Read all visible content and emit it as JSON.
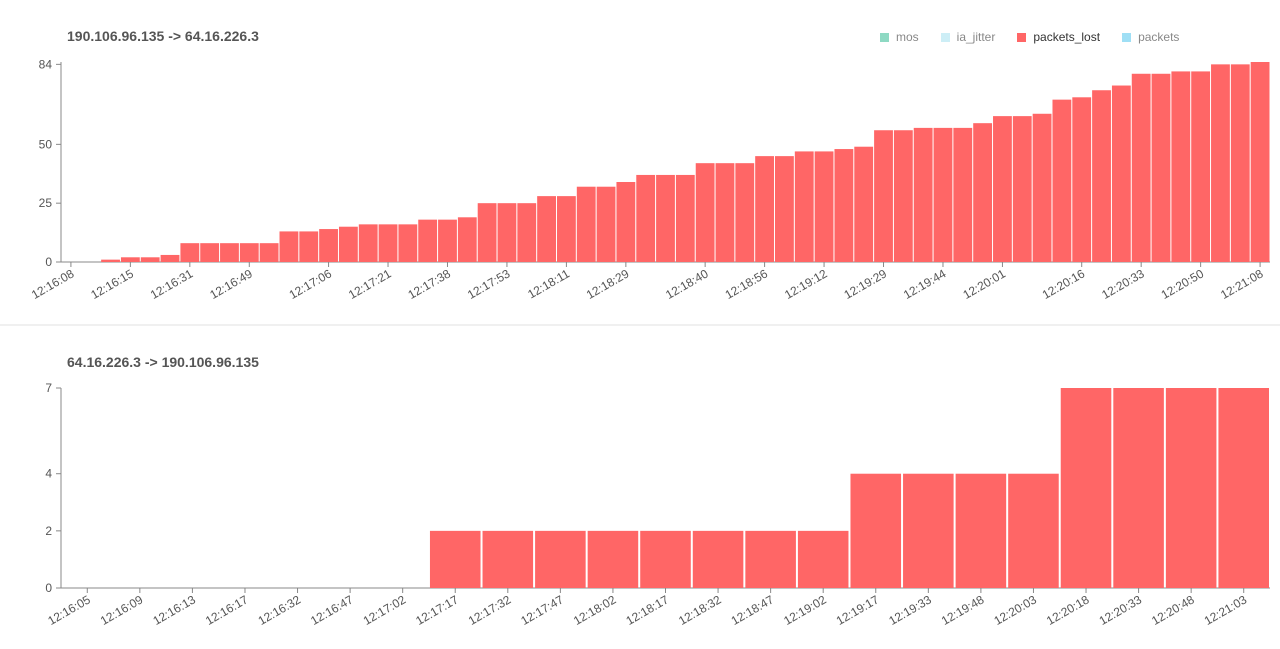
{
  "legend": {
    "items": [
      {
        "label": "mos",
        "color": "#8ed9c3"
      },
      {
        "label": "ia_jitter",
        "color": "#cdeef6"
      },
      {
        "label": "packets_lost",
        "color": "#ff6666"
      },
      {
        "label": "packets",
        "color": "#9fdff5"
      }
    ],
    "active": "packets_lost"
  },
  "chart_data": [
    {
      "type": "bar",
      "title": "190.106.96.135 -> 64.16.226.3",
      "series": [
        {
          "values": [
            0,
            0,
            1,
            2,
            2,
            3,
            8,
            8,
            8,
            8,
            8,
            13,
            13,
            14,
            15,
            16,
            16,
            16,
            18,
            18,
            19,
            25,
            25,
            25,
            28,
            28,
            32,
            32,
            34,
            37,
            37,
            37,
            42,
            42,
            42,
            45,
            45,
            47,
            47,
            48,
            49,
            56,
            56,
            57,
            57,
            57,
            59,
            62,
            62,
            63,
            69,
            70,
            73,
            75,
            80,
            80,
            81,
            81,
            84,
            84,
            85
          ]
        }
      ],
      "color": "#ff6666",
      "ylim": [
        0,
        85
      ],
      "yticks": [
        0,
        25,
        50,
        84
      ],
      "xtick_labels": [
        "12:16:08",
        "12:16:15",
        "12:16:31",
        "12:16:49",
        "12:17:06",
        "12:17:21",
        "12:17:38",
        "12:17:53",
        "12:18:11",
        "12:18:29",
        "12:18:40",
        "12:18:56",
        "12:19:12",
        "12:19:29",
        "12:19:44",
        "12:20:01",
        "12:20:16",
        "12:20:33",
        "12:20:50",
        "12:21:08"
      ],
      "grid": false
    },
    {
      "type": "bar",
      "title": "64.16.226.3 -> 190.106.96.135",
      "series": [
        {
          "values": [
            0,
            0,
            0,
            0,
            0,
            0,
            0,
            2,
            2,
            2,
            2,
            2,
            2,
            2,
            2,
            4,
            4,
            4,
            4,
            7,
            7,
            7,
            7
          ]
        }
      ],
      "color": "#ff6666",
      "ylim": [
        0,
        7
      ],
      "yticks": [
        0,
        2,
        4,
        7
      ],
      "xtick_labels": [
        "12:16:05",
        "12:16:09",
        "12:16:13",
        "12:16:17",
        "12:16:32",
        "12:16:47",
        "12:17:02",
        "12:17:17",
        "12:17:32",
        "12:17:47",
        "12:18:02",
        "12:18:17",
        "12:18:32",
        "12:18:47",
        "12:19:02",
        "12:19:17",
        "12:19:33",
        "12:19:48",
        "12:20:03",
        "12:20:18",
        "12:20:33",
        "12:20:48",
        "12:21:03"
      ],
      "grid": false
    }
  ]
}
